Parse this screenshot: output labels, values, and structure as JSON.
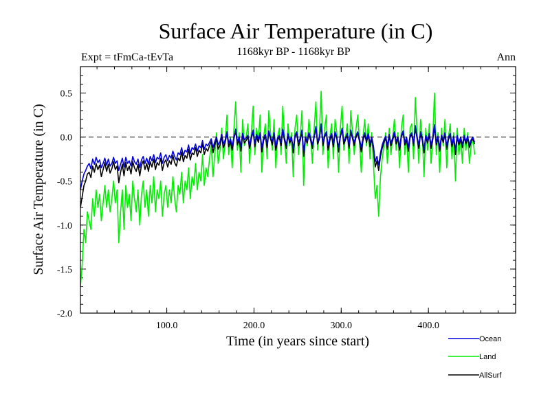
{
  "colors": {
    "ocean": "#0000dd",
    "land": "#00ee00",
    "allsurf": "#000000",
    "zero_line": "#000000"
  },
  "chart_data": {
    "type": "line",
    "title": "Surface Air Temperature (in C)",
    "subtitle": "1168kyr BP - 1168kyr BP",
    "expt_label": "Expt = tFmCa-tEvTa",
    "period_label": "Ann",
    "xlabel": "Time (in years since start)",
    "ylabel": "Surface Air Temperature (in C)",
    "xlim": [
      1,
      500
    ],
    "ylim": [
      -2.0,
      0.8
    ],
    "x_ticks": [
      100,
      200,
      300,
      400
    ],
    "x_tick_labels": [
      "100.0",
      "200.0",
      "300.0",
      "400.0"
    ],
    "y_ticks": [
      0.5,
      0.0,
      -0.5,
      -1.0,
      -1.5,
      -2.0
    ],
    "y_tick_labels": [
      "0.5",
      "0.0",
      "-0.5",
      "-1.0",
      "-1.5",
      "-2.0"
    ],
    "reference_line": {
      "y": 0.0,
      "style": "dashed"
    },
    "legend": {
      "placement": "bottom-right, below plot",
      "entries": [
        "Ocean",
        "Land",
        "AllSurf"
      ]
    },
    "x_step": 2,
    "series": [
      {
        "name": "Land",
        "color": "#00ee00",
        "values": [
          -1.7,
          -1.45,
          -1.05,
          -1.2,
          -0.85,
          -0.95,
          -1.05,
          -0.7,
          -0.9,
          -0.6,
          -0.8,
          -0.65,
          -0.95,
          -0.75,
          -0.55,
          -0.8,
          -0.6,
          -0.85,
          -0.7,
          -0.5,
          -0.75,
          -0.6,
          -1.2,
          -0.85,
          -0.6,
          -1.05,
          -0.55,
          -0.8,
          -0.65,
          -0.95,
          -0.5,
          -0.7,
          -0.85,
          -0.6,
          -1.0,
          -0.65,
          -0.5,
          -0.8,
          -0.6,
          -0.9,
          -0.55,
          -0.75,
          -0.45,
          -0.85,
          -0.6,
          -0.7,
          -0.5,
          -0.9,
          -0.65,
          -0.55,
          -0.8,
          -0.6,
          -0.75,
          -0.45,
          -0.7,
          -0.85,
          -0.55,
          -0.65,
          -0.4,
          -0.75,
          -0.5,
          -0.6,
          -0.35,
          -0.7,
          -0.45,
          -0.55,
          -0.3,
          -0.6,
          -0.4,
          -0.5,
          -0.2,
          -0.55,
          -0.35,
          -0.45,
          -0.25,
          -0.1,
          -0.45,
          -0.2,
          0.05,
          -0.3,
          -0.15,
          0.1,
          -0.25,
          -0.05,
          0.25,
          -0.2,
          0.0,
          -0.35,
          0.1,
          0.4,
          -0.15,
          0.05,
          -0.4,
          0.2,
          -0.1,
          0.0,
          0.15,
          -0.3,
          0.05,
          0.35,
          -0.2,
          0.1,
          -0.05,
          0.25,
          -0.4,
          0.0,
          0.15,
          -0.25,
          0.3,
          0.05,
          -0.15,
          0.2,
          -0.35,
          0.0,
          0.1,
          -0.2,
          0.35,
          0.0,
          -0.3,
          0.15,
          -0.1,
          0.05,
          -0.45,
          0.1,
          0.25,
          -0.2,
          0.0,
          0.3,
          -0.55,
          0.05,
          -0.1,
          0.2,
          0.0,
          -0.3,
          0.1,
          0.4,
          -0.15,
          0.05,
          0.52,
          -0.2,
          0.1,
          0.25,
          -0.35,
          0.0,
          0.15,
          -0.25,
          0.2,
          0.05,
          -0.4,
          0.1,
          0.35,
          -0.15,
          0.0,
          0.15,
          -0.3,
          0.3,
          0.05,
          -0.2,
          0.1,
          0.25,
          -0.05,
          -0.4,
          0.0,
          0.2,
          -0.1,
          0.15,
          -0.25,
          0.05,
          -0.3,
          -0.7,
          -0.55,
          -0.9,
          -0.45,
          -0.25,
          -0.1,
          0.05,
          -0.3,
          0.1,
          -0.2,
          0.0,
          0.2,
          -0.15,
          0.05,
          -0.35,
          0.1,
          0.25,
          -0.2,
          0.0,
          -0.4,
          0.1,
          0.15,
          -0.25,
          0.45,
          0.05,
          -0.3,
          0.2,
          0.0,
          -0.45,
          0.1,
          -0.15,
          0.15,
          -0.3,
          0.0,
          0.5,
          -0.2,
          0.05,
          -0.4,
          0.1,
          -0.1,
          0.2,
          -0.35,
          0.0,
          0.15,
          -0.25,
          0.05,
          -0.5,
          0.1,
          -0.2,
          0.0,
          -0.3,
          0.1,
          -0.15,
          0.05,
          -0.3,
          -0.1,
          0.0,
          -0.2
        ]
      },
      {
        "name": "AllSurf",
        "color": "#000000",
        "values": [
          -0.8,
          -0.68,
          -0.55,
          -0.5,
          -0.42,
          -0.4,
          -0.46,
          -0.33,
          -0.4,
          -0.3,
          -0.37,
          -0.32,
          -0.45,
          -0.37,
          -0.29,
          -0.39,
          -0.31,
          -0.41,
          -0.36,
          -0.28,
          -0.37,
          -0.33,
          -0.52,
          -0.4,
          -0.31,
          -0.44,
          -0.29,
          -0.38,
          -0.33,
          -0.42,
          -0.28,
          -0.35,
          -0.39,
          -0.31,
          -0.44,
          -0.32,
          -0.27,
          -0.37,
          -0.3,
          -0.39,
          -0.28,
          -0.34,
          -0.25,
          -0.37,
          -0.29,
          -0.32,
          -0.24,
          -0.38,
          -0.29,
          -0.26,
          -0.34,
          -0.27,
          -0.31,
          -0.21,
          -0.29,
          -0.33,
          -0.24,
          -0.27,
          -0.17,
          -0.28,
          -0.21,
          -0.24,
          -0.14,
          -0.26,
          -0.18,
          -0.2,
          -0.12,
          -0.22,
          -0.15,
          -0.18,
          -0.07,
          -0.2,
          -0.13,
          -0.16,
          -0.1,
          -0.05,
          -0.18,
          -0.09,
          -0.02,
          -0.14,
          -0.09,
          0.0,
          -0.12,
          -0.06,
          0.04,
          -0.11,
          -0.05,
          -0.15,
          -0.02,
          0.07,
          -0.09,
          -0.03,
          -0.16,
          0.02,
          -0.07,
          -0.04,
          0.0,
          -0.13,
          -0.02,
          0.06,
          -0.11,
          0.0,
          -0.06,
          0.03,
          -0.17,
          -0.04,
          0.01,
          -0.12,
          0.05,
          -0.02,
          -0.09,
          0.03,
          -0.15,
          -0.04,
          0.0,
          -0.1,
          0.07,
          -0.04,
          -0.13,
          0.02,
          -0.07,
          -0.02,
          -0.18,
          0.0,
          0.04,
          -0.1,
          -0.04,
          0.06,
          -0.22,
          -0.02,
          -0.07,
          0.03,
          -0.04,
          -0.13,
          0.0,
          0.1,
          -0.08,
          -0.02,
          0.13,
          -0.1,
          0.0,
          0.04,
          -0.15,
          -0.04,
          0.02,
          -0.11,
          0.04,
          -0.02,
          -0.17,
          0.0,
          0.08,
          -0.08,
          -0.03,
          0.02,
          -0.13,
          0.06,
          -0.02,
          -0.1,
          0.0,
          0.04,
          -0.05,
          -0.17,
          -0.04,
          0.03,
          -0.06,
          0.02,
          -0.11,
          -0.02,
          -0.14,
          -0.34,
          -0.27,
          -0.38,
          -0.22,
          -0.13,
          -0.06,
          -0.01,
          -0.14,
          0.01,
          -0.1,
          -0.04,
          0.04,
          -0.08,
          -0.02,
          -0.15,
          0.0,
          0.05,
          -0.09,
          -0.03,
          -0.16,
          0.0,
          0.03,
          -0.1,
          0.1,
          -0.02,
          -0.13,
          0.04,
          -0.04,
          -0.18,
          0.0,
          -0.07,
          0.02,
          -0.13,
          -0.03,
          0.11,
          -0.09,
          -0.01,
          -0.16,
          0.0,
          -0.06,
          0.03,
          -0.14,
          -0.03,
          0.02,
          -0.11,
          -0.01,
          -0.2,
          0.0,
          -0.09,
          -0.03,
          -0.12,
          0.0,
          -0.08,
          -0.01,
          -0.12,
          -0.05,
          -0.02,
          -0.08
        ]
      },
      {
        "name": "Ocean",
        "color": "#0000dd",
        "values": [
          -0.6,
          -0.5,
          -0.42,
          -0.38,
          -0.33,
          -0.3,
          -0.36,
          -0.25,
          -0.31,
          -0.23,
          -0.29,
          -0.26,
          -0.35,
          -0.3,
          -0.24,
          -0.32,
          -0.25,
          -0.33,
          -0.3,
          -0.23,
          -0.3,
          -0.27,
          -0.38,
          -0.31,
          -0.24,
          -0.34,
          -0.23,
          -0.3,
          -0.27,
          -0.33,
          -0.22,
          -0.28,
          -0.31,
          -0.25,
          -0.35,
          -0.26,
          -0.22,
          -0.3,
          -0.24,
          -0.31,
          -0.22,
          -0.27,
          -0.2,
          -0.29,
          -0.23,
          -0.25,
          -0.18,
          -0.3,
          -0.23,
          -0.2,
          -0.27,
          -0.21,
          -0.24,
          -0.16,
          -0.22,
          -0.26,
          -0.18,
          -0.2,
          -0.12,
          -0.21,
          -0.15,
          -0.17,
          -0.09,
          -0.19,
          -0.12,
          -0.14,
          -0.08,
          -0.16,
          -0.1,
          -0.12,
          -0.04,
          -0.14,
          -0.08,
          -0.1,
          -0.06,
          -0.02,
          -0.12,
          -0.05,
          0.0,
          -0.09,
          -0.05,
          0.03,
          -0.08,
          -0.03,
          0.06,
          -0.07,
          -0.02,
          -0.1,
          0.0,
          0.09,
          -0.05,
          0.0,
          -0.11,
          0.04,
          -0.03,
          -0.01,
          0.02,
          -0.09,
          0.01,
          0.08,
          -0.07,
          0.03,
          -0.03,
          0.05,
          -0.12,
          -0.01,
          0.03,
          -0.08,
          0.07,
          0.0,
          -0.05,
          0.05,
          -0.1,
          -0.01,
          0.02,
          -0.06,
          0.09,
          -0.01,
          -0.09,
          0.04,
          -0.04,
          0.0,
          -0.13,
          0.02,
          0.06,
          -0.06,
          -0.01,
          0.08,
          -0.16,
          0.0,
          -0.04,
          0.05,
          -0.01,
          -0.09,
          0.02,
          0.12,
          -0.05,
          0.0,
          0.15,
          -0.06,
          0.02,
          0.06,
          -0.1,
          -0.01,
          0.04,
          -0.07,
          0.06,
          0.0,
          -0.12,
          0.02,
          0.1,
          -0.05,
          -0.01,
          0.04,
          -0.09,
          0.08,
          0.0,
          -0.06,
          0.02,
          0.06,
          -0.02,
          -0.12,
          -0.01,
          0.05,
          -0.03,
          0.04,
          -0.07,
          0.0,
          -0.1,
          -0.28,
          -0.22,
          -0.32,
          -0.18,
          -0.09,
          -0.03,
          0.01,
          -0.1,
          0.03,
          -0.07,
          -0.01,
          0.06,
          -0.05,
          0.0,
          -0.11,
          0.02,
          0.07,
          -0.06,
          0.0,
          -0.12,
          0.02,
          0.05,
          -0.07,
          0.13,
          0.0,
          -0.09,
          0.06,
          -0.01,
          -0.14,
          0.02,
          -0.04,
          0.04,
          -0.09,
          0.0,
          0.14,
          -0.06,
          0.01,
          -0.12,
          0.02,
          -0.03,
          0.05,
          -0.1,
          0.0,
          0.04,
          -0.08,
          0.01,
          -0.15,
          0.02,
          -0.06,
          0.0,
          -0.09,
          0.02,
          -0.05,
          0.01,
          -0.09,
          -0.03,
          0.0,
          -0.06
        ]
      }
    ]
  }
}
